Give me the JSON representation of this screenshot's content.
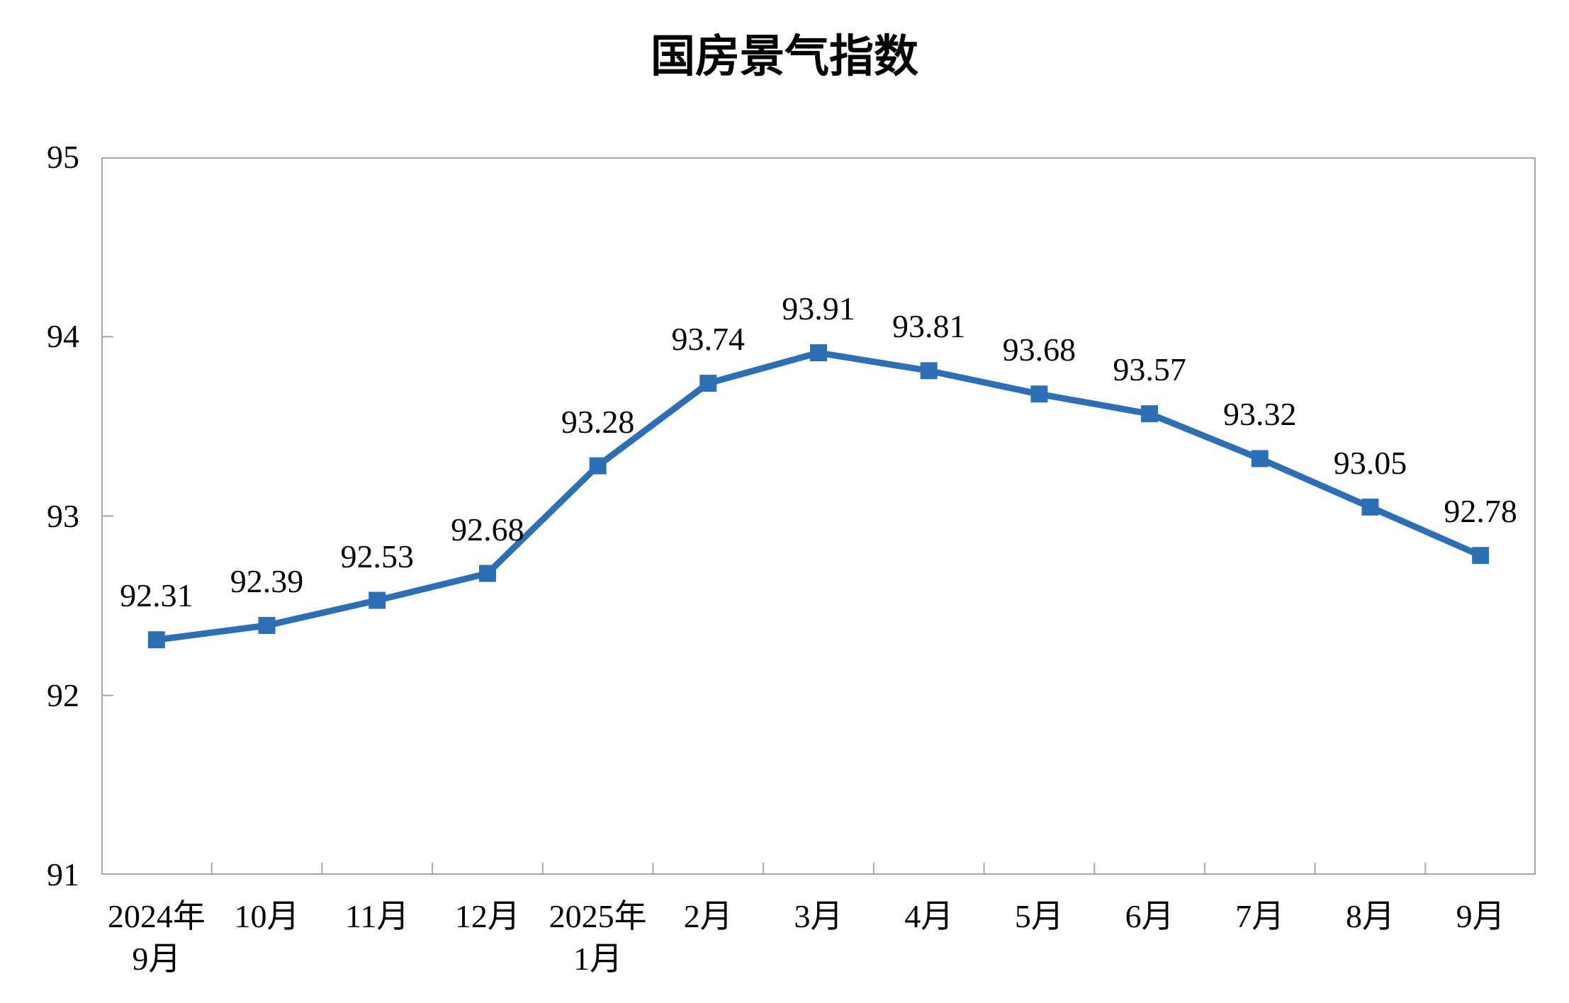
{
  "chart_data": {
    "type": "line",
    "title": "国房景气指数",
    "categories": [
      [
        "2024年",
        "9月"
      ],
      [
        "10月"
      ],
      [
        "11月"
      ],
      [
        "12月"
      ],
      [
        "2025年",
        "1月"
      ],
      [
        "2月"
      ],
      [
        "3月"
      ],
      [
        "4月"
      ],
      [
        "5月"
      ],
      [
        "6月"
      ],
      [
        "7月"
      ],
      [
        "8月"
      ],
      [
        "9月"
      ]
    ],
    "values": [
      92.31,
      92.39,
      92.53,
      92.68,
      93.28,
      93.74,
      93.91,
      93.81,
      93.68,
      93.57,
      93.32,
      93.05,
      92.78
    ],
    "data_labels": [
      "92.31",
      "92.39",
      "92.53",
      "92.68",
      "93.28",
      "93.74",
      "93.91",
      "93.81",
      "93.68",
      "93.57",
      "93.32",
      "93.05",
      "92.78"
    ],
    "xlabel": "",
    "ylabel": "",
    "ylim": [
      91,
      95
    ],
    "yticks": [
      91,
      92,
      93,
      94,
      95
    ],
    "grid": false,
    "legend": "none",
    "marker": "square",
    "colors": {
      "series": "#2D6FB5",
      "axis": "#A6A6A6",
      "text": "#000000",
      "background": "#FFFFFF"
    }
  }
}
